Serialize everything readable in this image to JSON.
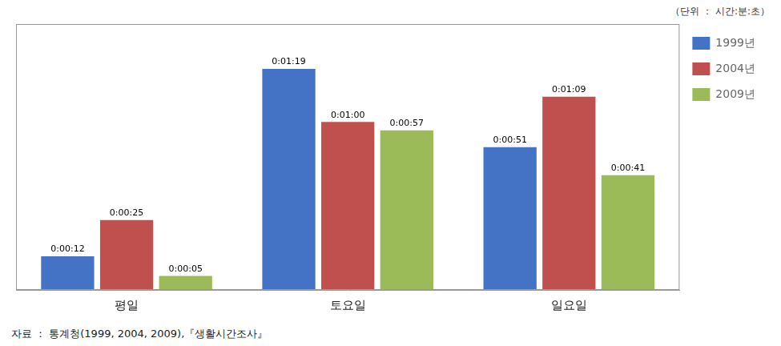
{
  "chart_data": {
    "type": "bar",
    "categories": [
      "평일",
      "토요일",
      "일요일"
    ],
    "series": [
      {
        "name": "1999년",
        "color": "#4472C4",
        "values": [
          12,
          79,
          51
        ],
        "value_labels": [
          "0:00:12",
          "0:01:19",
          "0:00:51"
        ]
      },
      {
        "name": "2004년",
        "color": "#C0504D",
        "values": [
          25,
          60,
          69
        ],
        "value_labels": [
          "0:00:25",
          "0:01:00",
          "0:01:09"
        ]
      },
      {
        "name": "2009년",
        "color": "#9BBB59",
        "values": [
          5,
          57,
          41
        ],
        "value_labels": [
          "0:00:05",
          "0:00:57",
          "0:00:41"
        ]
      }
    ],
    "annotations": [
      "（단위 ： 시간:분:초）",
      "자료 ： 통계청(1999, 2004, 2009),『생활시간조사』"
    ],
    "ylim": [
      0,
      95
    ],
    "grid": false,
    "legend": "right",
    "data_labels": true,
    "tick_labels": "x"
  }
}
